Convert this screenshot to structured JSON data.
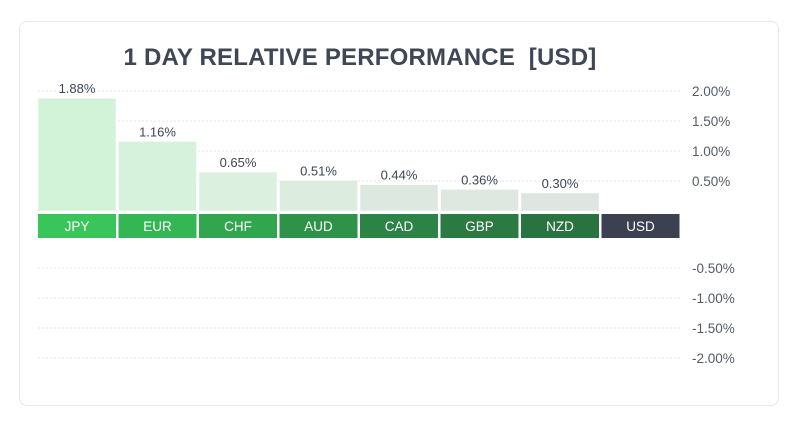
{
  "chart_data": {
    "type": "bar",
    "title": "1 DAY RELATIVE PERFORMANCE  [USD]",
    "categories": [
      "JPY",
      "EUR",
      "CHF",
      "AUD",
      "CAD",
      "GBP",
      "NZD",
      "USD"
    ],
    "values": [
      1.88,
      1.16,
      0.65,
      0.51,
      0.44,
      0.36,
      0.3,
      0.0
    ],
    "value_labels": [
      "1.88%",
      "1.16%",
      "0.65%",
      "0.51%",
      "0.44%",
      "0.36%",
      "0.30%",
      ""
    ],
    "yticks": [
      2.0,
      1.5,
      1.0,
      0.5,
      -0.5,
      -1.0,
      -1.5,
      -2.0
    ],
    "ytick_labels": [
      "2.00%",
      "1.50%",
      "1.00%",
      "0.50%",
      "-0.50%",
      "-1.00%",
      "-1.50%",
      "-2.00%"
    ],
    "ylim": [
      -2.0,
      2.0
    ],
    "grid": true,
    "y_axis_side": "right"
  },
  "colors": {
    "label_shades": [
      "#39c55a",
      "#35b655",
      "#31a64f",
      "#2e9249",
      "#2b8445",
      "#2a7a41",
      "#297340",
      "#3b4150"
    ],
    "bar_shades": [
      "#d3f3d9",
      "#d7f2dc",
      "#dbf0df",
      "#dcede0",
      "#dde9e0",
      "#dee7e0",
      "#dfe5e0",
      "#e2e3e6"
    ],
    "grid": "#e3e5e8",
    "title": "#3f4654"
  }
}
